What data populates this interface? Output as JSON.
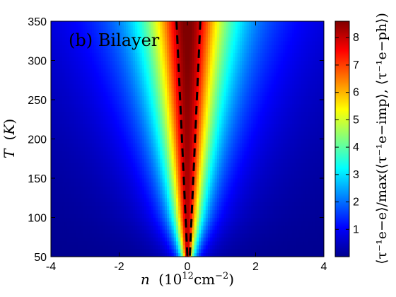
{
  "chart_data": {
    "type": "heatmap",
    "panel_label": "(b) Bilayer",
    "x": {
      "label_var": "n",
      "label_units": "(10",
      "label_exp": "12",
      "label_units2": "cm",
      "label_exp2": "−2",
      "label_close": ")",
      "range": [
        -4,
        4
      ],
      "ticks": [
        -4,
        -2,
        0,
        2,
        4
      ]
    },
    "y": {
      "label_var": "T",
      "label_units_open": "(",
      "label_units_var": "K",
      "label_units_close": ")",
      "range": [
        50,
        350
      ],
      "ticks": [
        50,
        100,
        150,
        200,
        250,
        300,
        350
      ]
    },
    "colorbar": {
      "label": "⟨τ⁻¹e−e⟩/max(⟨τ⁻¹e−imp⟩, ⟨τ⁻¹e−ph⟩)",
      "range": [
        0,
        8.6
      ],
      "ticks": [
        1,
        2,
        3,
        4,
        5,
        6,
        7,
        8
      ],
      "colormap": "jet"
    },
    "surface": {
      "description_peak_at": 0,
      "peak_value": 8.6,
      "width_at_T": [
        [
          50,
          0.15
        ],
        [
          100,
          0.35
        ],
        [
          150,
          0.5
        ],
        [
          200,
          0.65
        ],
        [
          250,
          0.8
        ],
        [
          300,
          0.95
        ],
        [
          350,
          1.1
        ]
      ]
    },
    "dashed_lines": [
      {
        "points": [
          [
            -0.32,
            350
          ],
          [
            0.0,
            50
          ]
        ]
      },
      {
        "points": [
          [
            0.38,
            350
          ],
          [
            0.07,
            50
          ]
        ]
      }
    ]
  }
}
